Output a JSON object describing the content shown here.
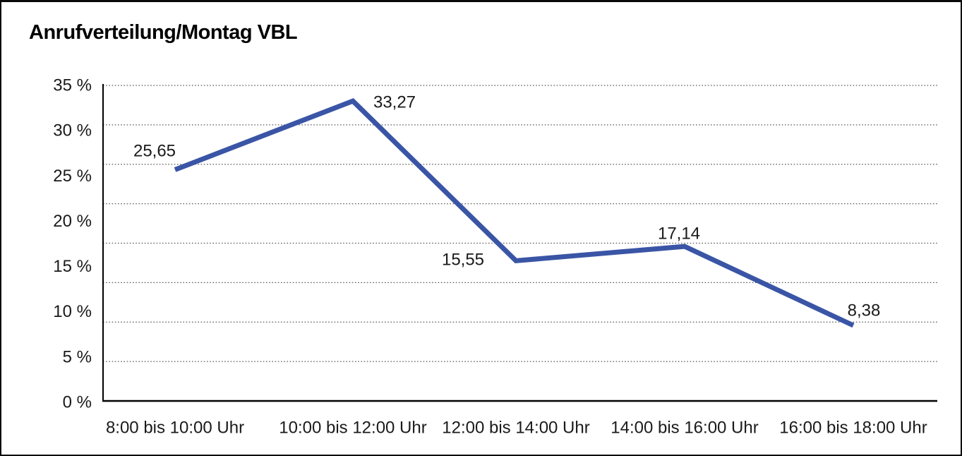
{
  "window": {
    "title": "Anrufverteilung/Montag VBL"
  },
  "chart_data": {
    "type": "line",
    "title": "Anrufverteilung/Montag VBL",
    "categories": [
      "8:00 bis 10:00 Uhr",
      "10:00 bis 12:00 Uhr",
      "12:00 bis 14:00 Uhr",
      "14:00 bis 16:00 Uhr",
      "16:00 bis 18:00 Uhr"
    ],
    "values": [
      25.65,
      33.27,
      15.55,
      17.14,
      8.38
    ],
    "value_labels": [
      "25,65",
      "33,27",
      "15,55",
      "17,14",
      "8,38"
    ],
    "xlabel": "",
    "ylabel": "",
    "ylim": [
      0,
      35
    ],
    "ytick_step": 5,
    "ytick_labels": [
      "35 %",
      "30 %",
      "25 %",
      "20 %",
      "15 %",
      "10 %",
      "5 %",
      "0 %"
    ],
    "grid": "horizontal-dotted",
    "legend_position": "none",
    "series_name": "Anrufverteilung Montag",
    "line_color": "#3A55A5",
    "text_color": "#1a1a1a",
    "grid_color": "#5a5a5a",
    "axis_color": "#000000"
  }
}
